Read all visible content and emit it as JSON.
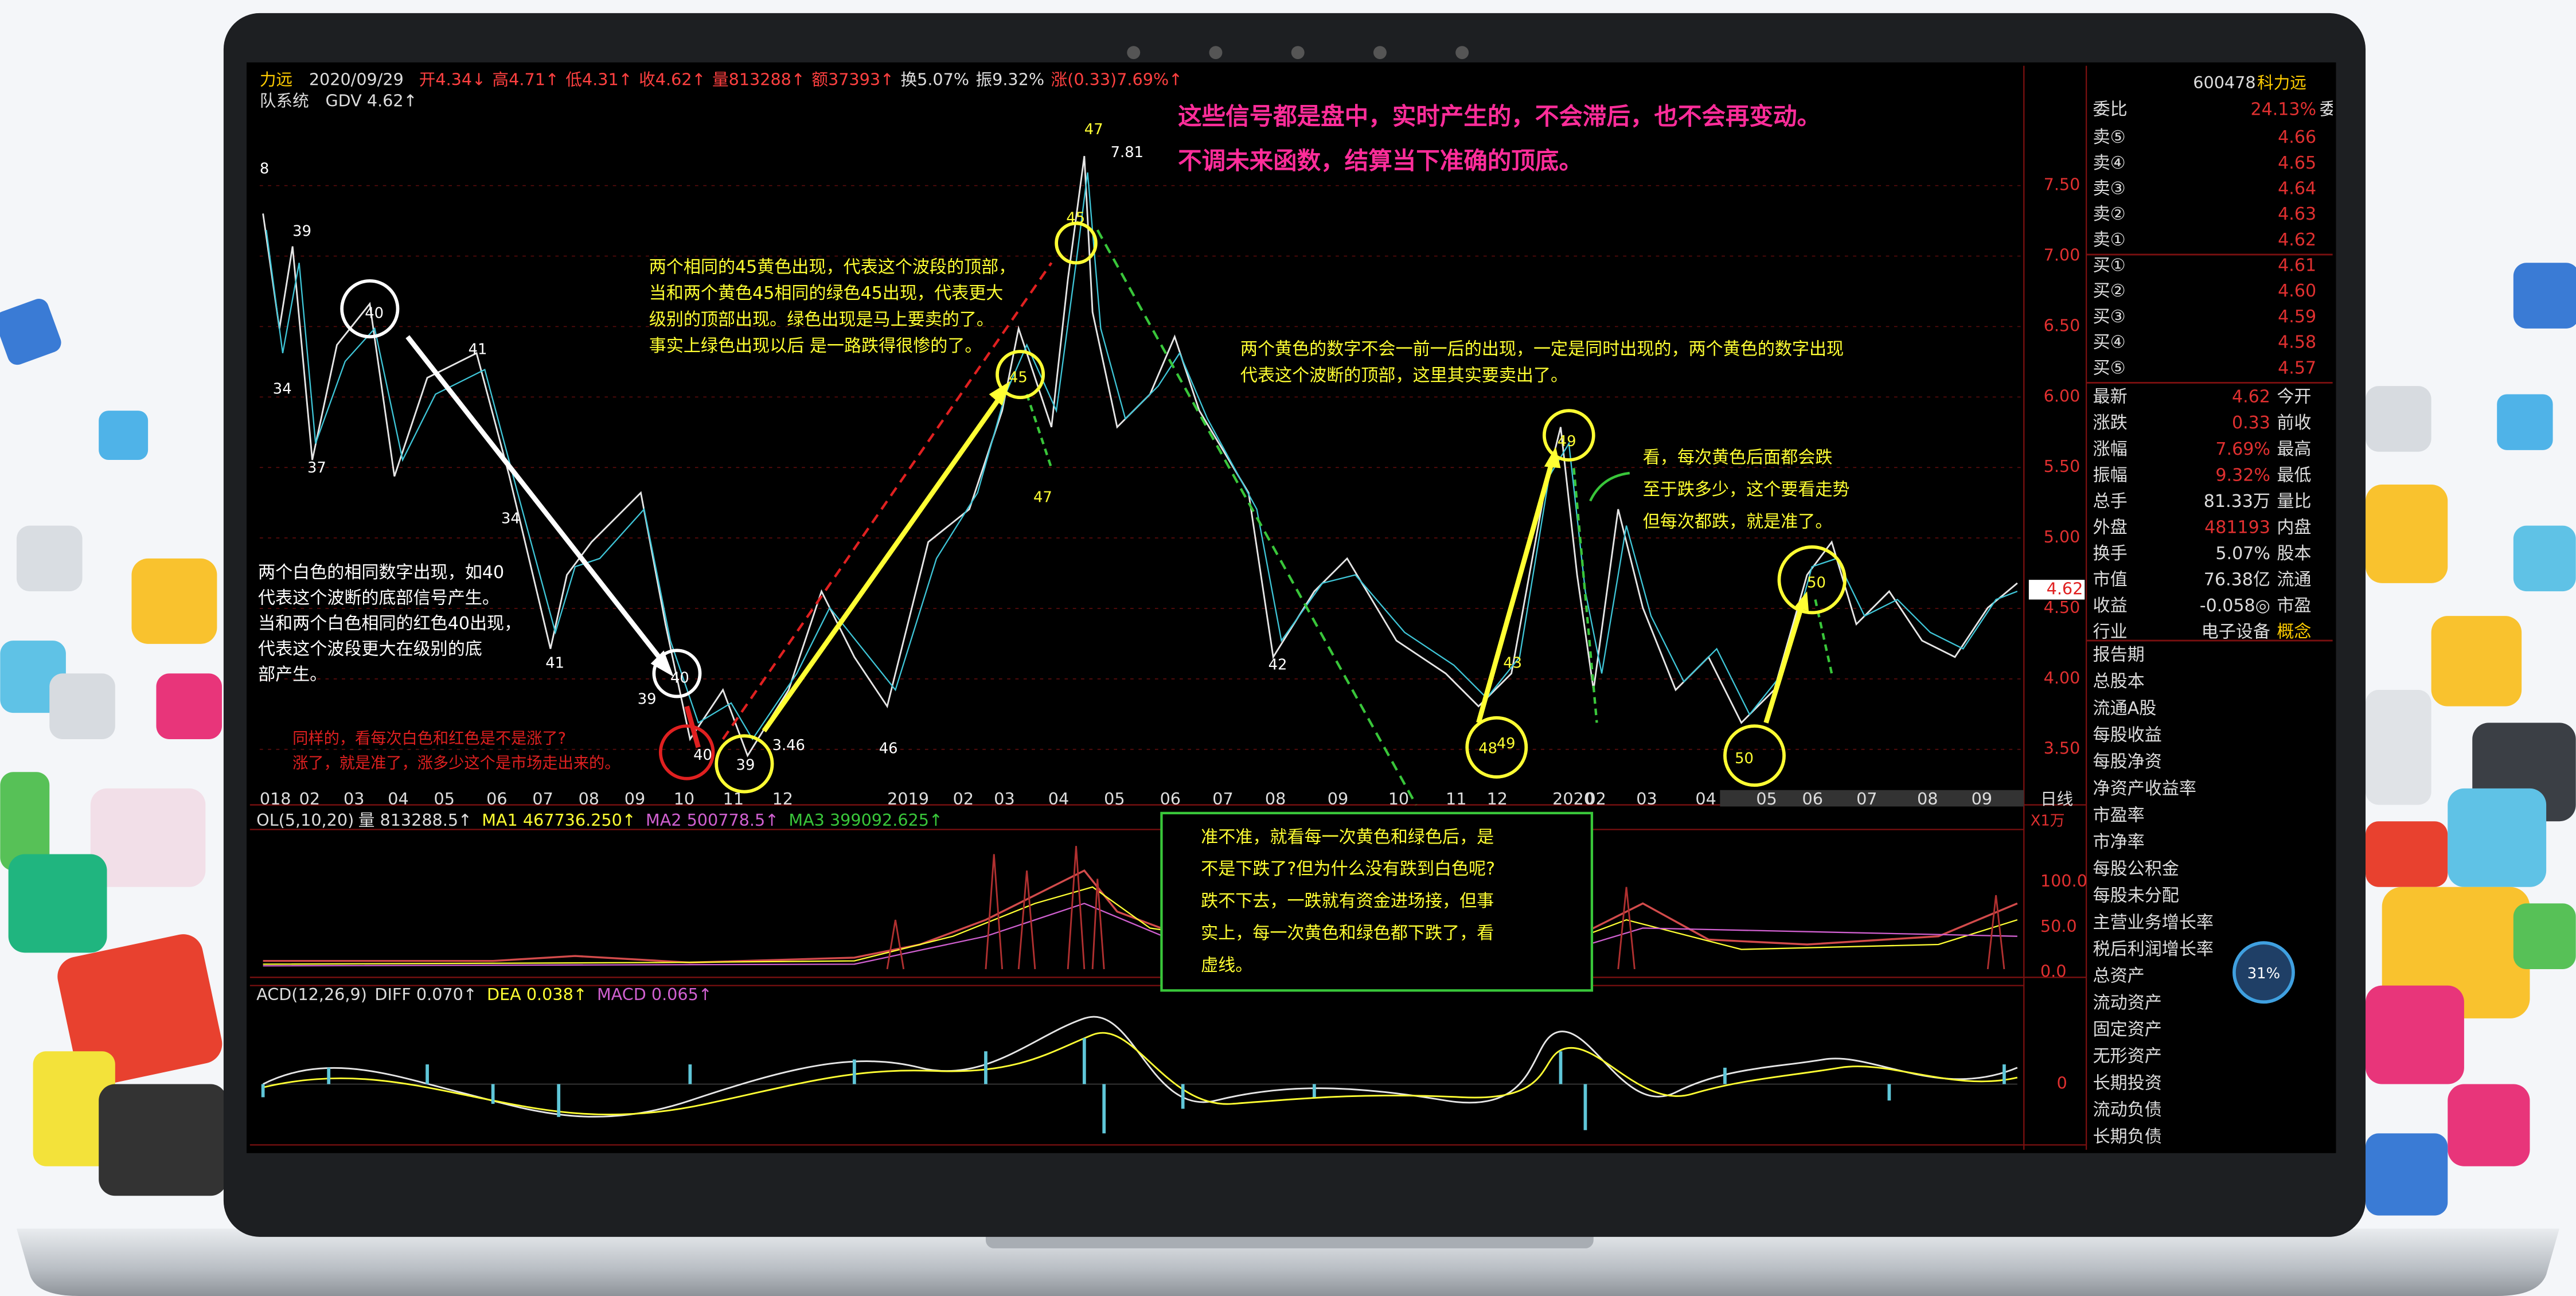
{
  "header": {
    "stock_name": "力远",
    "date": "2020/09/29",
    "fields": [
      "开4.34↓",
      "高4.71↑",
      "低4.31↑",
      "收4.62↑",
      "量813288↑",
      "额37393↑",
      "换5.07%",
      "振9.32%",
      "涨(0.33)7.69%↑"
    ],
    "indicator": "队系统",
    "gdv": "GDV 4.62↑"
  },
  "annotations": {
    "top": [
      "这些信号都是盘中，实时产生的，不会滞后，也不会再变动。",
      "不调未来函数，结算当下准确的顶底。"
    ],
    "yellow_top": [
      "两个相同的45黄色出现，代表这个波段的顶部，",
      "当和两个黄色45相同的绿色45出现，代表更大",
      "级别的顶部出现。绿色出现是马上要卖的了。",
      "事实上绿色出现以后 是一路跌得很惨的了。"
    ],
    "yellow_right": [
      "两个黄色的数字不会一前一后的出现，一定是同时出现的，两个黄色的数字出现",
      "代表这个波断的顶部，这里其实要卖出了。"
    ],
    "yellow_note": [
      "看，每次黄色后面都会跌",
      "至于跌多少，这个要看走势",
      "但每次都跌，就是准了。"
    ],
    "white_note": [
      "两个白色的相同数字出现，如40",
      "代表这个波断的底部信号产生。",
      "当和两个白色相同的红色40出现，",
      "代表这个波段更大在级别的底",
      "部产生。"
    ],
    "red_note": [
      "同样的，看每次白色和红色是不是涨了?",
      "涨了，就是准了，涨多少这个是市场走出来的。"
    ],
    "green_box": [
      "准不准，就看每一次黄色和绿色后，是",
      "不是下跌了?但为什么没有跌到白色呢?",
      "跌不下去，一跌就有资金进场接，但事",
      "实上，每一次黄色和绿色都下跌了，看",
      "虚线。"
    ]
  },
  "price_axis": {
    "labels": [
      "7.50",
      "7.00",
      "6.50",
      "6.00",
      "5.50",
      "5.00",
      "4.50",
      "4.00",
      "3.50"
    ],
    "period": "日线",
    "last": "4.62"
  },
  "x_axis": [
    "018",
    "02",
    "03",
    "04",
    "05",
    "06",
    "07",
    "08",
    "09",
    "10",
    "11",
    "12",
    "2019",
    "02",
    "03",
    "04",
    "05",
    "06",
    "07",
    "08",
    "09",
    "10",
    "11",
    "12",
    "2020",
    "02",
    "03",
    "04",
    "05",
    "06",
    "07",
    "08",
    "09"
  ],
  "chart_labels": [
    "8",
    "39",
    "34",
    "37",
    "40",
    "41",
    "34",
    "41",
    "40",
    "39",
    "40",
    "39",
    "3.46",
    "46",
    "47",
    "7.81",
    "45",
    "45",
    "47",
    "42",
    "48",
    "49",
    "49",
    "43",
    "50",
    "50"
  ],
  "volume": {
    "title": "OL(5,10,20)",
    "fields": [
      "量 813288.5↑",
      "MA1 467736.250↑",
      "MA2 500778.5↑",
      "MA3 399092.625↑"
    ],
    "unit": "X1万",
    "ticks": [
      "100.0",
      "50.0",
      "0.0"
    ]
  },
  "macd": {
    "title": "ACD(12,26,9)",
    "fields": [
      "DIFF 0.070↑",
      "DEA 0.038↑",
      "MACD 0.065↑"
    ],
    "zero": "0"
  },
  "quote_panel": {
    "code": "600478",
    "name": "科力远",
    "ratio": [
      "委比",
      "24.13%",
      "委差"
    ],
    "asks": [
      [
        "卖⑤",
        "4.66"
      ],
      [
        "卖④",
        "4.65"
      ],
      [
        "卖③",
        "4.64"
      ],
      [
        "卖②",
        "4.63"
      ],
      [
        "卖①",
        "4.62"
      ]
    ],
    "bids": [
      [
        "买①",
        "4.61"
      ],
      [
        "买②",
        "4.60"
      ],
      [
        "买③",
        "4.59"
      ],
      [
        "买④",
        "4.58"
      ],
      [
        "买⑤",
        "4.57"
      ]
    ],
    "quotes": [
      [
        "最新",
        "4.62",
        "今开"
      ],
      [
        "涨跌",
        "0.33",
        "前收"
      ],
      [
        "涨幅",
        "7.69%",
        "最高"
      ],
      [
        "振幅",
        "9.32%",
        "最低"
      ],
      [
        "总手",
        "81.33万",
        "量比"
      ],
      [
        "外盘",
        "481193",
        "内盘"
      ],
      [
        "换手",
        "5.07%",
        "股本"
      ],
      [
        "市值",
        "76.38亿",
        "流通"
      ],
      [
        "收益",
        "-0.058◎",
        "市盈"
      ],
      [
        "行业",
        "电子设备",
        "概念"
      ]
    ],
    "finance": [
      "报告期",
      "总股本",
      "流通A股",
      "每股收益",
      "每股净资",
      "净资产收益率",
      "市盈率",
      "市净率",
      "每股公积金",
      "每股未分配",
      "主营业务增长率",
      "税后利润增长率",
      "总资产",
      "流动资产",
      "固定资产",
      "无形资产",
      "长期投资",
      "流动负债",
      "长期负债"
    ],
    "badge": "31%"
  }
}
